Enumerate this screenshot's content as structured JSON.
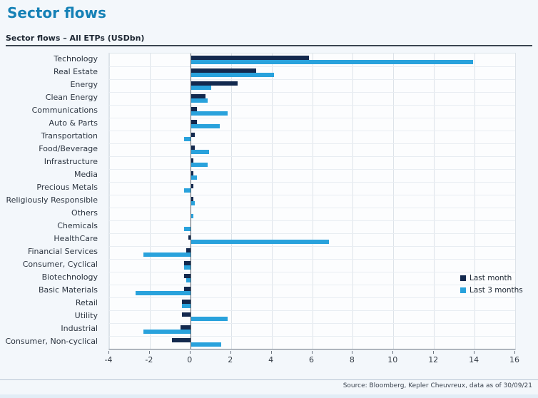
{
  "header": {
    "title": "Sector flows"
  },
  "section": {
    "title": "Sector flows – All ETPs (USDbn)"
  },
  "footer": {
    "source": "Source: Bloomberg, Kepler Cheuvreux, data as of 30/09/21"
  },
  "colors": {
    "title_blue": "#1581b6",
    "last_month": "#13294e",
    "last_3_months": "#29a2dc",
    "page_background": "#f3f7fb",
    "plot_background": "#fcfdfe"
  },
  "chart_data": {
    "type": "bar",
    "orientation": "horizontal",
    "title": "Sector flows – All ETPs (USDbn)",
    "categories": [
      "Technology",
      "Real Estate",
      "Energy",
      "Clean Energy",
      "Communications",
      "Auto & Parts",
      "Transportation",
      "Food/Beverage",
      "Infrastructure",
      "Media",
      "Precious Metals",
      "Religiously Responsible",
      "Others",
      "Chemicals",
      "HealthCare",
      "Financial Services",
      "Consumer, Cyclical",
      "Biotechnology",
      "Basic Materials",
      "Retail",
      "Utility",
      "Industrial",
      "Consumer, Non-cyclical"
    ],
    "series": [
      {
        "name": "Last month",
        "color": "#13294e",
        "values": [
          5.8,
          3.2,
          2.3,
          0.7,
          0.3,
          0.3,
          0.2,
          0.2,
          0.1,
          0.1,
          0.1,
          0.1,
          0.0,
          0.0,
          -0.1,
          -0.2,
          -0.3,
          -0.3,
          -0.3,
          -0.4,
          -0.4,
          -0.5,
          -0.9
        ]
      },
      {
        "name": "Last 3 months",
        "color": "#29a2dc",
        "values": [
          13.9,
          4.1,
          1.0,
          0.8,
          1.8,
          1.4,
          -0.3,
          0.9,
          0.8,
          0.3,
          -0.3,
          0.2,
          0.1,
          -0.3,
          6.8,
          -2.3,
          -0.3,
          -0.2,
          -2.7,
          -0.4,
          1.8,
          -2.3,
          1.5
        ]
      }
    ],
    "xlim": [
      -4,
      16
    ],
    "x_ticks": [
      -4,
      -2,
      0,
      2,
      4,
      6,
      8,
      10,
      12,
      14,
      16
    ],
    "grid": true,
    "legend_position": "inside-right"
  }
}
